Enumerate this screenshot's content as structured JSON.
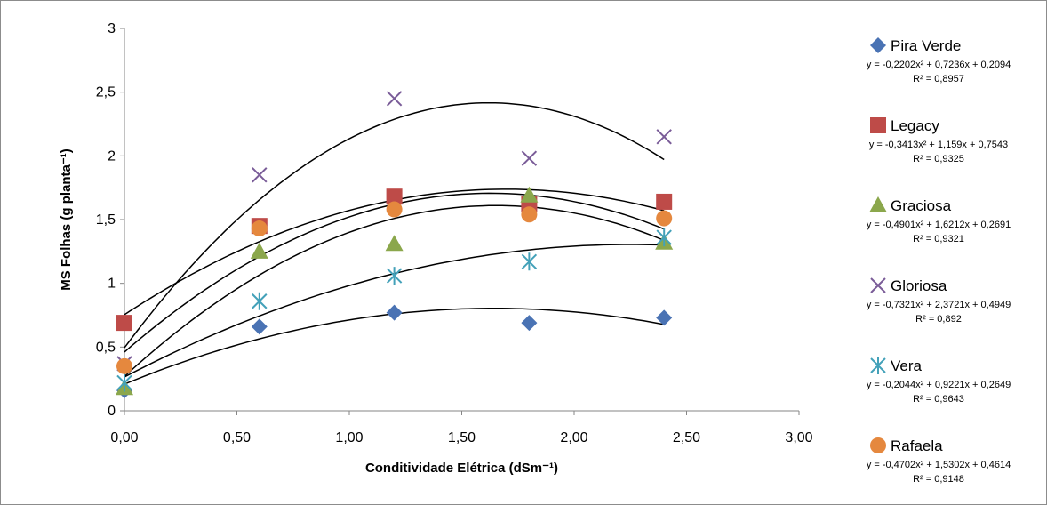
{
  "chart_data": {
    "type": "scatter",
    "title": "",
    "xlabel": "Conditividade Elétrica (dSm⁻¹)",
    "ylabel": "MS Folhas (g planta⁻¹)",
    "xlim": [
      0,
      3
    ],
    "ylim": [
      0,
      3
    ],
    "x_ticks": [
      "0,00",
      "0,50",
      "1,00",
      "1,50",
      "2,00",
      "2,50",
      "3,00"
    ],
    "y_ticks": [
      "0",
      "0,5",
      "1",
      "1,5",
      "2",
      "2,5",
      "3"
    ],
    "grid": false,
    "legend_position": "right",
    "x": [
      0,
      0.6,
      1.2,
      1.8,
      2.4
    ],
    "series": [
      {
        "name": "Pira Verde",
        "marker": "diamond",
        "color": "#4a73b4",
        "values": [
          0.16,
          0.66,
          0.77,
          0.69,
          0.73
        ],
        "trend": [
          -0.2202,
          0.7236,
          0.2094
        ],
        "equation": "y = -0,2202x² + 0,7236x + 0,2094",
        "r2": "R² = 0,8957"
      },
      {
        "name": "Legacy",
        "marker": "square",
        "color": "#be4b48",
        "values": [
          0.69,
          1.45,
          1.68,
          1.62,
          1.64
        ],
        "trend": [
          -0.3413,
          1.159,
          0.7543
        ],
        "equation": "y = -0,3413x² + 1,159x + 0,7543",
        "r2": "R² = 0,9325"
      },
      {
        "name": "Graciosa",
        "marker": "triangle",
        "color": "#8ba74c",
        "values": [
          0.18,
          1.25,
          1.31,
          1.69,
          1.32
        ],
        "trend": [
          -0.4901,
          1.6212,
          0.2691
        ],
        "equation": "y = -0,4901x² + 1,6212x + 0,2691",
        "r2": "R² = 0,9321"
      },
      {
        "name": "Gloriosa",
        "marker": "x",
        "color": "#7a5c98",
        "values": [
          0.37,
          1.85,
          2.45,
          1.98,
          2.15
        ],
        "trend": [
          -0.7321,
          2.3721,
          0.4949
        ],
        "equation": "y = -0,7321x² + 2,3721x + 0,4949",
        "r2": "R² = 0,892"
      },
      {
        "name": "Vera",
        "marker": "asterisk",
        "color": "#43a1b9",
        "values": [
          0.22,
          0.86,
          1.06,
          1.17,
          1.36
        ],
        "trend": [
          -0.2044,
          0.9221,
          0.2649
        ],
        "equation": "y = -0,2044x² + 0,9221x + 0,2649",
        "r2": "R² = 0,9643"
      },
      {
        "name": "Rafaela",
        "marker": "circle",
        "color": "#e5883e",
        "values": [
          0.35,
          1.43,
          1.58,
          1.54,
          1.51
        ],
        "trend": [
          -0.4702,
          1.5302,
          0.4614
        ],
        "equation": "y = -0,4702x² + 1,5302x + 0,4614",
        "r2": "R² = 0,9148"
      }
    ]
  }
}
